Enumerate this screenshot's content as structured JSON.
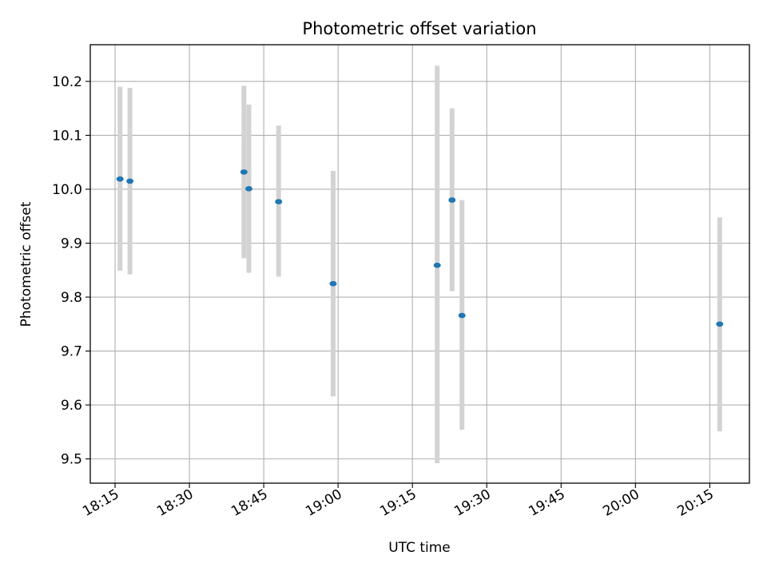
{
  "chart_data": {
    "type": "scatter",
    "title": "Photometric offset variation",
    "xlabel": "UTC time",
    "ylabel": "Photometric offset",
    "x_ticks": [
      "18:15",
      "18:30",
      "18:45",
      "19:00",
      "19:15",
      "19:30",
      "19:45",
      "20:00",
      "20:15"
    ],
    "y_ticks": [
      "9.5",
      "9.6",
      "9.7",
      "9.8",
      "9.9",
      "10.0",
      "10.1",
      "10.2"
    ],
    "xlim": [
      "18:10",
      "20:23"
    ],
    "ylim": [
      9.455,
      10.268
    ],
    "grid": true,
    "series": [
      {
        "color": "#1f77b4",
        "errorbar_color": "#d3d3d3",
        "points": [
          {
            "x": "18:16",
            "y": 10.019,
            "ylow": 9.849,
            "yhigh": 10.19
          },
          {
            "x": "18:18",
            "y": 10.015,
            "ylow": 9.842,
            "yhigh": 10.188
          },
          {
            "x": "18:41",
            "y": 10.032,
            "ylow": 9.872,
            "yhigh": 10.192
          },
          {
            "x": "18:42",
            "y": 10.001,
            "ylow": 9.845,
            "yhigh": 10.157
          },
          {
            "x": "18:48",
            "y": 9.977,
            "ylow": 9.838,
            "yhigh": 10.118
          },
          {
            "x": "18:59",
            "y": 9.825,
            "ylow": 9.616,
            "yhigh": 10.034
          },
          {
            "x": "19:20",
            "y": 9.859,
            "ylow": 9.492,
            "yhigh": 10.229
          },
          {
            "x": "19:23",
            "y": 9.98,
            "ylow": 9.811,
            "yhigh": 10.15
          },
          {
            "x": "19:25",
            "y": 9.766,
            "ylow": 9.554,
            "yhigh": 9.98
          },
          {
            "x": "20:17",
            "y": 9.75,
            "ylow": 9.551,
            "yhigh": 9.948
          }
        ]
      }
    ]
  }
}
